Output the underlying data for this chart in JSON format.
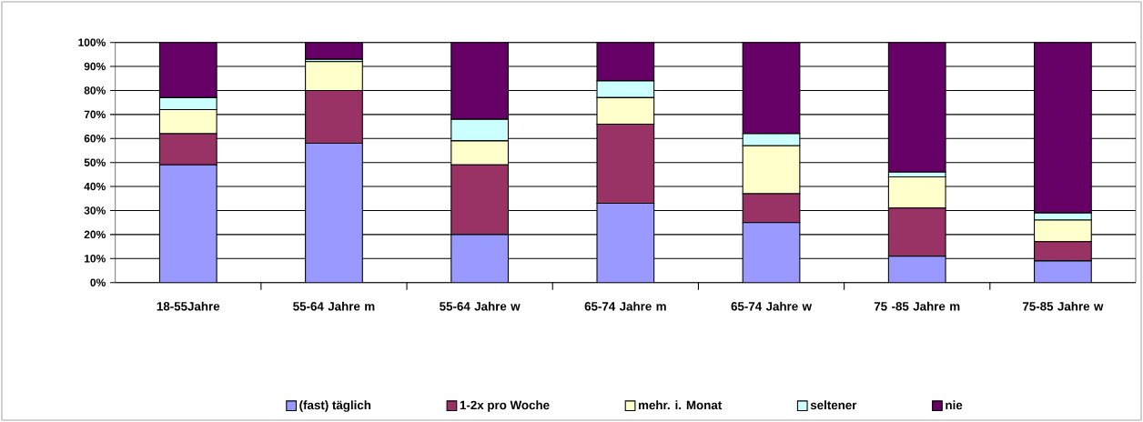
{
  "chart_data": {
    "type": "bar",
    "stacked": true,
    "categories": [
      "18-55Jahre",
      "55-64 Jahre m",
      "55-64 Jahre w",
      "65-74 Jahre m",
      "65-74 Jahre w",
      "75 -85 Jahre m",
      "75-85 Jahre w"
    ],
    "series": [
      {
        "name": "(fast) täglich",
        "color": "#9999ff",
        "values": [
          49,
          58,
          20,
          33,
          25,
          11,
          9
        ]
      },
      {
        "name": "1-2x pro Woche",
        "color": "#993366",
        "values": [
          13,
          22,
          29,
          33,
          12,
          20,
          8
        ]
      },
      {
        "name": "mehr. i. Monat",
        "color": "#ffffcc",
        "values": [
          10,
          12,
          10,
          11,
          20,
          13,
          9
        ]
      },
      {
        "name": "seltener",
        "color": "#ccffff",
        "values": [
          5,
          1,
          9,
          7,
          5,
          2,
          3
        ]
      },
      {
        "name": "nie",
        "color": "#660066",
        "values": [
          23,
          7,
          32,
          16,
          38,
          54,
          71
        ]
      }
    ],
    "ylim": [
      0,
      100
    ],
    "yticks": [
      {
        "value": 0,
        "label": "0%"
      },
      {
        "value": 10,
        "label": "10%"
      },
      {
        "value": 20,
        "label": "20%"
      },
      {
        "value": 30,
        "label": "30%"
      },
      {
        "value": 40,
        "label": "40%"
      },
      {
        "value": 50,
        "label": "50%"
      },
      {
        "value": 60,
        "label": "60%"
      },
      {
        "value": 70,
        "label": "70%"
      },
      {
        "value": 80,
        "label": "80%"
      },
      {
        "value": 90,
        "label": "90%"
      },
      {
        "value": 100,
        "label": "100%"
      }
    ],
    "grid": "y",
    "legend": "bottom"
  }
}
